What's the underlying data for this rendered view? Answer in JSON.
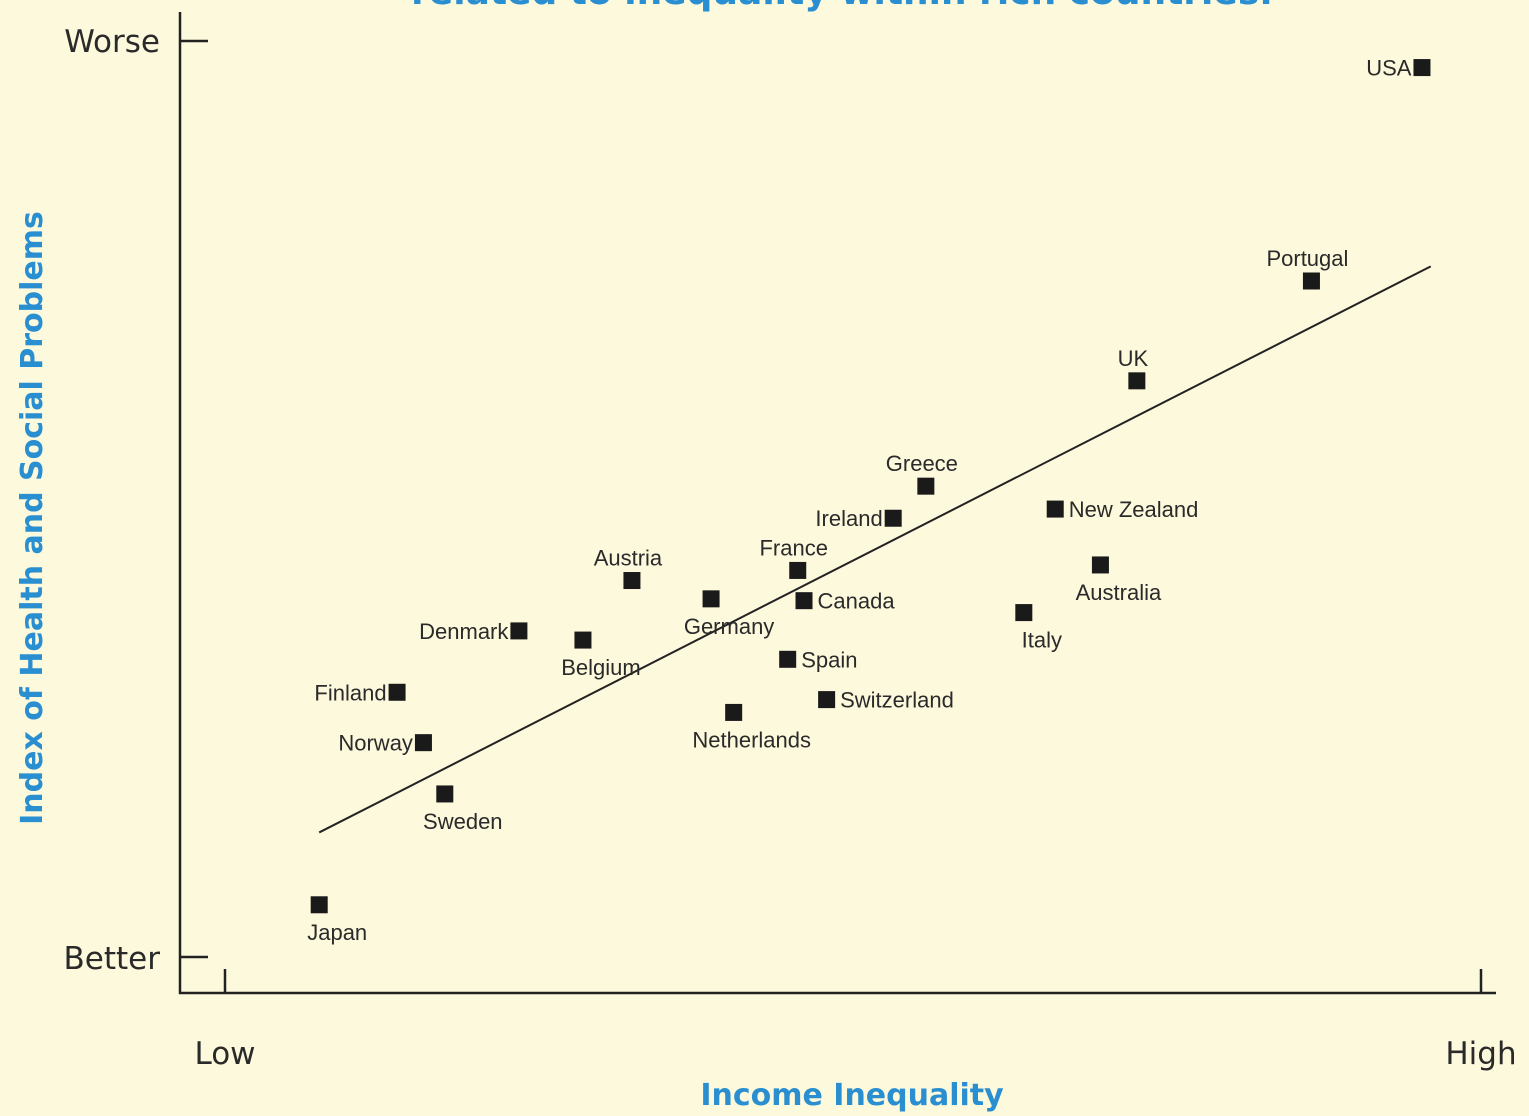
{
  "chart_data": {
    "type": "scatter",
    "title": "related to inequality within rich countries.",
    "xlabel": "Income Inequality",
    "ylabel": "Index of Health and Social Problems",
    "x_tick_labels": [
      "Low",
      "High"
    ],
    "y_tick_labels": [
      "Better",
      "Worse"
    ],
    "xlim": [
      0,
      100
    ],
    "ylim": [
      0,
      100
    ],
    "grid": false,
    "legend": "none",
    "colors": {
      "title": "#2a8fd0",
      "axis_title": "#2a8fd0",
      "marker": "#1a1a1a",
      "background": "#fdf9dc"
    },
    "points": [
      {
        "label": "USA",
        "x": 95.3,
        "y": 97.1,
        "label_pos": "left"
      },
      {
        "label": "Portugal",
        "x": 86.5,
        "y": 73.8,
        "label_pos": "above"
      },
      {
        "label": "UK",
        "x": 72.6,
        "y": 62.9,
        "label_pos": "above"
      },
      {
        "label": "Greece",
        "x": 55.8,
        "y": 51.4,
        "label_pos": "above"
      },
      {
        "label": "Ireland",
        "x": 53.2,
        "y": 47.9,
        "label_pos": "left"
      },
      {
        "label": "New Zealand",
        "x": 66.1,
        "y": 48.9,
        "label_pos": "right"
      },
      {
        "label": "Australia",
        "x": 69.7,
        "y": 42.8,
        "label_pos": "below"
      },
      {
        "label": "France",
        "x": 45.6,
        "y": 42.2,
        "label_pos": "above"
      },
      {
        "label": "Canada",
        "x": 46.1,
        "y": 38.9,
        "label_pos": "right"
      },
      {
        "label": "Italy",
        "x": 63.6,
        "y": 37.6,
        "label_pos": "below"
      },
      {
        "label": "Austria",
        "x": 32.4,
        "y": 41.1,
        "label_pos": "above"
      },
      {
        "label": "Germany",
        "x": 38.7,
        "y": 39.1,
        "label_pos": "below"
      },
      {
        "label": "Denmark",
        "x": 23.4,
        "y": 35.6,
        "label_pos": "left"
      },
      {
        "label": "Belgium",
        "x": 28.5,
        "y": 34.6,
        "label_pos": "below"
      },
      {
        "label": "Spain",
        "x": 44.8,
        "y": 32.5,
        "label_pos": "right"
      },
      {
        "label": "Switzerland",
        "x": 47.9,
        "y": 28.1,
        "label_pos": "right"
      },
      {
        "label": "Netherlands",
        "x": 40.5,
        "y": 26.7,
        "label_pos": "below"
      },
      {
        "label": "Finland",
        "x": 13.7,
        "y": 28.9,
        "label_pos": "left"
      },
      {
        "label": "Norway",
        "x": 15.8,
        "y": 23.4,
        "label_pos": "left"
      },
      {
        "label": "Sweden",
        "x": 17.5,
        "y": 17.8,
        "label_pos": "below"
      },
      {
        "label": "Japan",
        "x": 7.5,
        "y": 5.7,
        "label_pos": "below"
      }
    ],
    "trendline": {
      "x": [
        7.5,
        96.0
      ],
      "y": [
        13.6,
        75.4
      ]
    }
  }
}
